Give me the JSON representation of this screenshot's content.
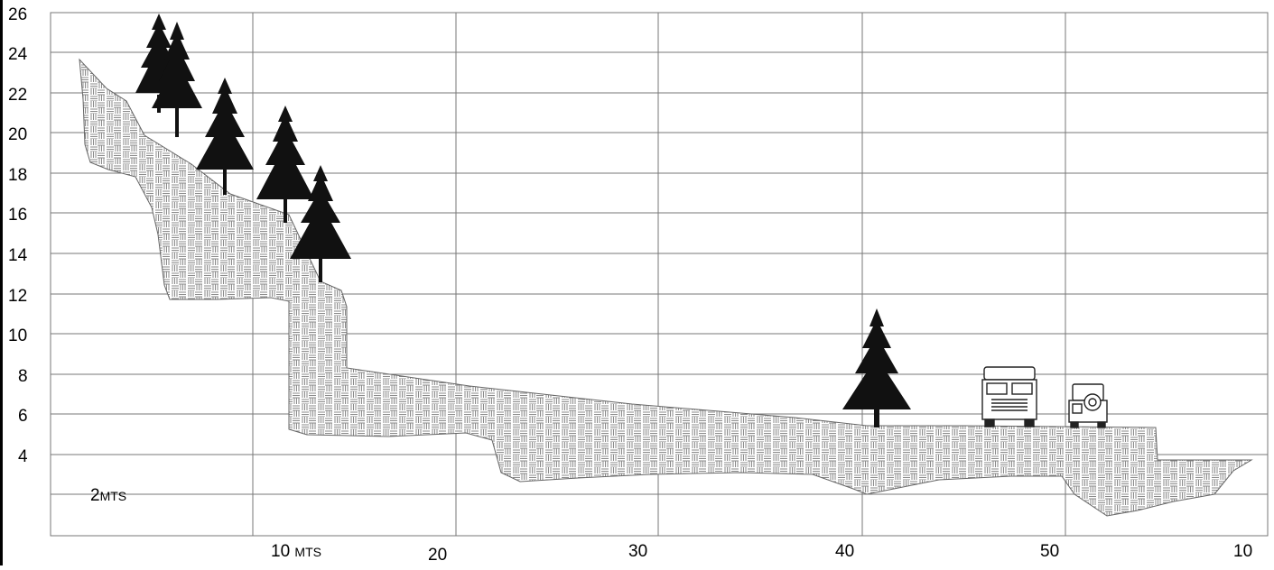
{
  "y_axis": {
    "ticks": [
      "26",
      "24",
      "22",
      "20",
      "18",
      "16",
      "14",
      "12",
      "10",
      "8",
      "6",
      "4"
    ]
  },
  "x_axis": {
    "ticks": [
      {
        "num": "10",
        "unit": "MTS"
      },
      {
        "num": "20",
        "unit": ""
      },
      {
        "num": "30",
        "unit": ""
      },
      {
        "num": "40",
        "unit": ""
      },
      {
        "num": "50",
        "unit": ""
      },
      {
        "num": "10",
        "unit": ""
      }
    ]
  },
  "scale_label": {
    "num": "2",
    "unit": "MTS"
  },
  "colors": {
    "grid": "#777777",
    "hatch": "#8a8a8a",
    "ink": "#111111"
  },
  "icons": [
    "pine-tree-icon",
    "truck-icon",
    "jeep-icon"
  ]
}
